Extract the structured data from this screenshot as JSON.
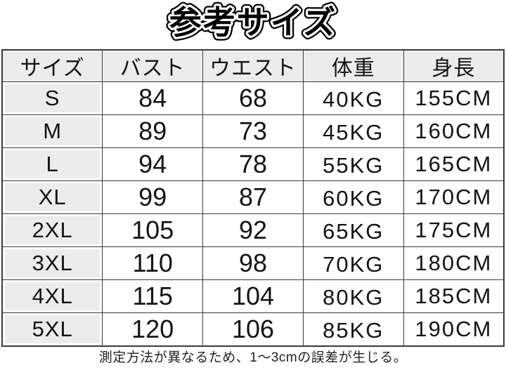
{
  "title": "参考サイズ",
  "table": {
    "headers": [
      "サイズ",
      "バスト",
      "ウエスト",
      "体重",
      "身長"
    ],
    "rows": [
      [
        "S",
        "84",
        "68",
        "40KG",
        "155CM"
      ],
      [
        "M",
        "89",
        "73",
        "45KG",
        "160CM"
      ],
      [
        "L",
        "94",
        "78",
        "55KG",
        "165CM"
      ],
      [
        "XL",
        "99",
        "87",
        "60KG",
        "170CM"
      ],
      [
        "2XL",
        "105",
        "92",
        "65KG",
        "175CM"
      ],
      [
        "3XL",
        "110",
        "98",
        "70KG",
        "180CM"
      ],
      [
        "4XL",
        "115",
        "104",
        "80KG",
        "185CM"
      ],
      [
        "5XL",
        "120",
        "106",
        "85KG",
        "190CM"
      ]
    ]
  },
  "footnote": "測定方法が異なるため、1〜3cmの誤差が生じる。",
  "colors": {
    "background": "#ffffff",
    "header_bg": "#ececec",
    "size_label_bg": "#ececec",
    "border": "#3a3a3a",
    "text": "#141414"
  }
}
